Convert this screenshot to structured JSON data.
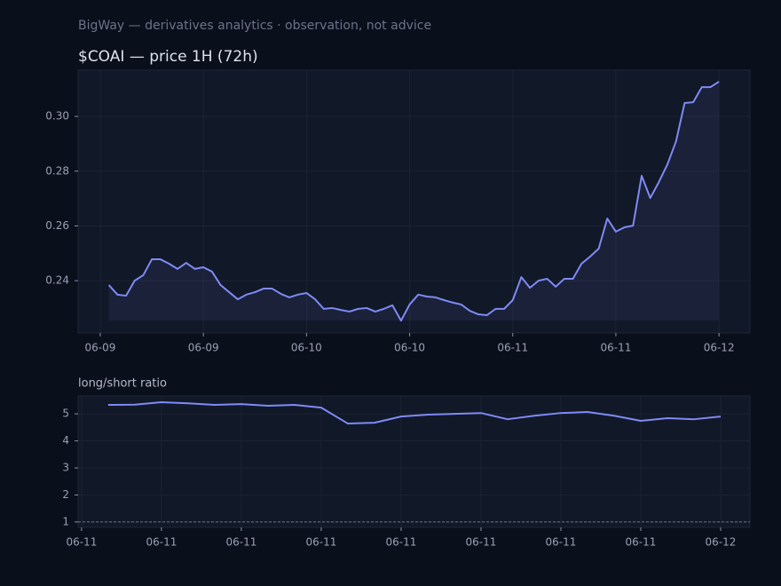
{
  "header": {
    "text": "BigWay — derivatives analytics · observation, not advice"
  },
  "chart_data": [
    {
      "type": "line",
      "title": "$COAI — price 1H (72h)",
      "color": "#7f8af5",
      "area": true,
      "grid": true,
      "x": [
        1,
        2,
        3,
        4,
        5,
        6,
        7,
        8,
        9,
        10,
        11,
        12,
        13,
        14,
        15,
        16,
        17,
        18,
        19,
        20,
        21,
        22,
        23,
        24,
        25,
        26,
        27,
        28,
        29,
        30,
        31,
        32,
        33,
        34,
        35,
        36,
        37,
        38,
        39,
        40,
        41,
        42,
        43,
        44,
        45,
        46,
        47,
        48,
        49,
        50,
        51,
        52,
        53,
        54,
        55,
        56,
        57,
        58,
        59,
        60,
        61,
        62,
        63,
        64,
        65,
        66,
        67,
        68,
        69,
        70,
        71,
        72
      ],
      "values": [
        0.2384,
        0.2349,
        0.2345,
        0.24,
        0.242,
        0.2478,
        0.2478,
        0.2462,
        0.2443,
        0.2465,
        0.2443,
        0.2449,
        0.2433,
        0.2384,
        0.2358,
        0.2332,
        0.2349,
        0.2358,
        0.2371,
        0.2371,
        0.2352,
        0.2339,
        0.2349,
        0.2355,
        0.2332,
        0.2297,
        0.23,
        0.2293,
        0.2287,
        0.2297,
        0.23,
        0.2287,
        0.2297,
        0.231,
        0.2254,
        0.2313,
        0.2349,
        0.2342,
        0.2339,
        0.2329,
        0.232,
        0.2313,
        0.229,
        0.2277,
        0.2274,
        0.2297,
        0.2297,
        0.2329,
        0.2413,
        0.2374,
        0.24,
        0.2407,
        0.2378,
        0.2407,
        0.2407,
        0.2462,
        0.2488,
        0.2517,
        0.2627,
        0.2579,
        0.2595,
        0.2601,
        0.2783,
        0.2702,
        0.276,
        0.2825,
        0.2909,
        0.3049,
        0.3052,
        0.3107,
        0.3107,
        0.3127
      ],
      "xlim": [
        -2.58,
        75.6
      ],
      "xticks": [
        {
          "value": 0,
          "label": "06-09"
        },
        {
          "value": 12,
          "label": "06-09"
        },
        {
          "value": 24,
          "label": "06-10"
        },
        {
          "value": 36,
          "label": "06-10"
        },
        {
          "value": 48,
          "label": "06-11"
        },
        {
          "value": 60,
          "label": "06-11"
        },
        {
          "value": 72,
          "label": "06-12"
        }
      ],
      "ylim": [
        0.2209,
        0.3169
      ],
      "yticks": [
        0.24,
        0.26,
        0.28,
        {
          "value": 0.3,
          "label": "0.30"
        }
      ]
    },
    {
      "type": "line",
      "title": "long/short ratio",
      "color": "#7f8af5",
      "area": false,
      "grid": true,
      "hline": 1,
      "x": [
        1,
        2,
        3,
        4,
        5,
        6,
        7,
        8,
        9,
        10,
        11,
        12,
        13,
        14,
        15,
        16,
        17,
        18,
        19,
        20,
        21,
        22,
        23,
        24
      ],
      "values": [
        5.33,
        5.34,
        5.43,
        5.39,
        5.33,
        5.36,
        5.3,
        5.33,
        5.23,
        4.64,
        4.67,
        4.9,
        4.97,
        5.0,
        5.03,
        4.8,
        4.93,
        5.03,
        5.07,
        4.93,
        4.74,
        4.84,
        4.8,
        4.9
      ],
      "xlim": [
        -0.13,
        25.1
      ],
      "xticks": [
        {
          "value": 0,
          "label": "06-11"
        },
        {
          "value": 3,
          "label": "06-11"
        },
        {
          "value": 6,
          "label": "06-11"
        },
        {
          "value": 9,
          "label": "06-11"
        },
        {
          "value": 12,
          "label": "06-11"
        },
        {
          "value": 15,
          "label": "06-11"
        },
        {
          "value": 18,
          "label": "06-11"
        },
        {
          "value": 21,
          "label": "06-11"
        },
        {
          "value": 24,
          "label": "06-12"
        }
      ],
      "ylim": [
        0.8,
        5.66
      ],
      "yticks": [
        1,
        2,
        3,
        4,
        5
      ]
    }
  ]
}
